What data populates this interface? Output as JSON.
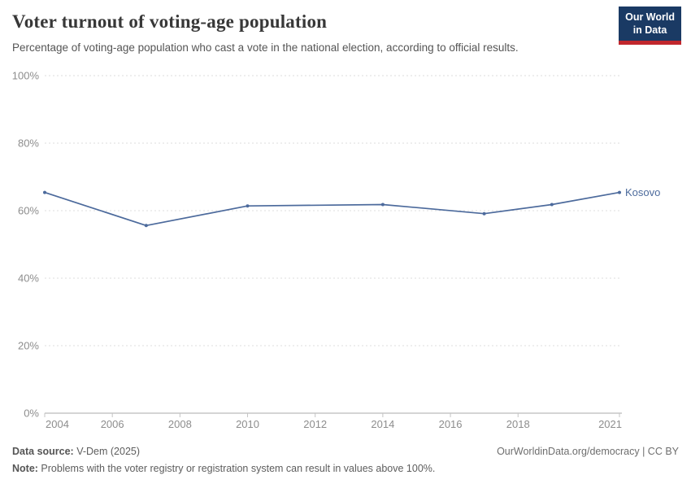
{
  "header": {
    "title": "Voter turnout of voting-age population",
    "subtitle": "Percentage of voting-age population who cast a vote in the national election, according to official results.",
    "logo": {
      "line1": "Our World",
      "line2": "in Data"
    }
  },
  "chart_data": {
    "type": "line",
    "title": "Voter turnout of voting-age population",
    "xlabel": "",
    "ylabel": "",
    "x": [
      2004,
      2007,
      2010,
      2014,
      2017,
      2019,
      2021
    ],
    "series": [
      {
        "name": "Kosovo",
        "color": "#4c6a9c",
        "values": [
          65.4,
          55.6,
          61.4,
          61.8,
          59.1,
          61.8,
          65.4
        ]
      }
    ],
    "xlim": [
      2004,
      2021
    ],
    "ylim": [
      0,
      100
    ],
    "xticks": [
      2004,
      2006,
      2008,
      2010,
      2012,
      2014,
      2016,
      2018,
      2021
    ],
    "yticks": [
      {
        "value": 0,
        "label": "0%"
      },
      {
        "value": 20,
        "label": "20%"
      },
      {
        "value": 40,
        "label": "40%"
      },
      {
        "value": 60,
        "label": "60%"
      },
      {
        "value": 80,
        "label": "80%"
      },
      {
        "value": 100,
        "label": "100%"
      }
    ],
    "grid": "horizontal-dashed",
    "legend_position": "end-of-line-label",
    "unit": "%"
  },
  "footer": {
    "source_label": "Data source:",
    "source_value": " V-Dem (2025)",
    "link": "OurWorldinData.org/democracy | CC BY",
    "note_label": "Note:",
    "note_text": " Problems with the voter registry or registration system can result in values above 100%."
  },
  "colors": {
    "line": "#4c6a9c",
    "grid": "#dedede",
    "axis": "#a9a9a9",
    "tick_mark": "#c4c4c4",
    "tick_label": "#8d8d8d",
    "logo_bg": "#1a3a64",
    "logo_bar": "#c1272d"
  }
}
